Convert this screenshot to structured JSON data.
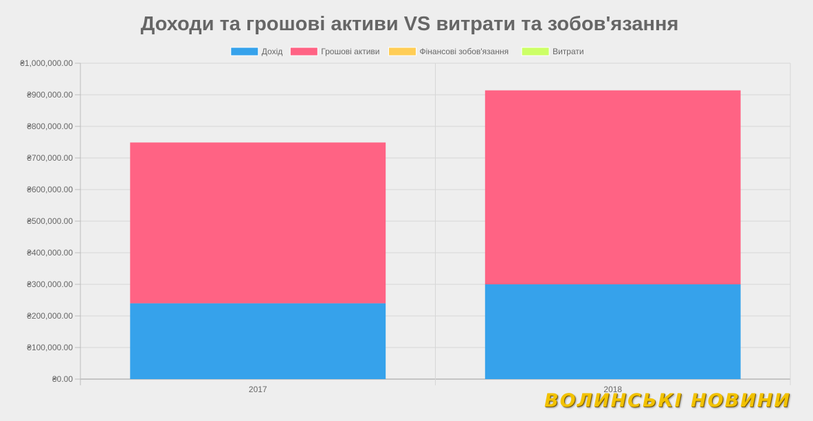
{
  "chart_data": {
    "type": "bar",
    "stacked": true,
    "title": "Доходи та грошові активи VS витрати та зобов'язання",
    "categories": [
      "2017",
      "2018"
    ],
    "series": [
      {
        "name": "Дохід",
        "color": "#36a2eb",
        "values": [
          240000,
          300000
        ]
      },
      {
        "name": "Грошові активи",
        "color": "#ff6384",
        "values": [
          509000,
          614000
        ]
      },
      {
        "name": "Фінансові зобов'язання",
        "color": "#ffcd56",
        "values": [
          0,
          0
        ]
      },
      {
        "name": "Витрати",
        "color": "#ccff66",
        "values": [
          0,
          0
        ]
      }
    ],
    "ylim": [
      0,
      1000000
    ],
    "yticks": [
      0,
      100000,
      200000,
      300000,
      400000,
      500000,
      600000,
      700000,
      800000,
      900000,
      1000000
    ],
    "ytick_labels": [
      "₴0.00",
      "₴100,000.00",
      "₴200,000.00",
      "₴300,000.00",
      "₴400,000.00",
      "₴500,000.00",
      "₴600,000.00",
      "₴700,000.00",
      "₴800,000.00",
      "₴900,000.00",
      "₴1,000,000.00"
    ],
    "grid": true,
    "legend_position": "top"
  },
  "watermark": "ВОЛИНСЬКІ НОВИНИ"
}
